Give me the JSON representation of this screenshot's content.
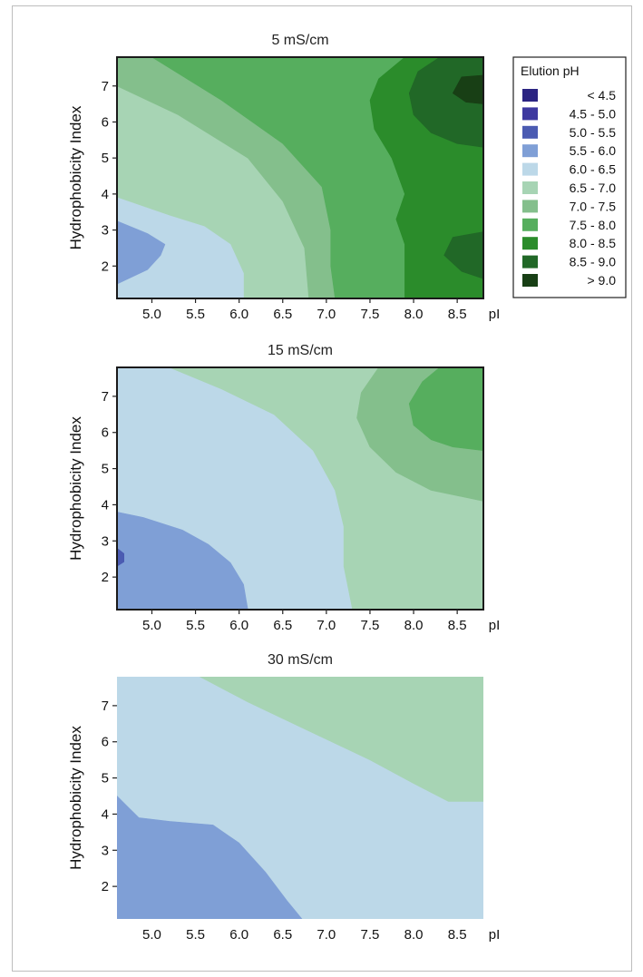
{
  "chart_data": [
    {
      "type": "contour",
      "title": "5 mS/cm",
      "xlabel": "pI",
      "ylabel": "Hydrophobicity Index",
      "xlim": [
        4.6,
        8.8
      ],
      "ylim": [
        1.1,
        7.8
      ],
      "xticks": [
        "5.0",
        "5.5",
        "6.0",
        "6.5",
        "7.0",
        "7.5",
        "8.0",
        "8.5"
      ],
      "yticks": [
        "2",
        "3",
        "4",
        "5",
        "6",
        "7"
      ],
      "regions": [
        {
          "level": "6.0 - 6.5",
          "points": [
            [
              4.6,
              1.1
            ],
            [
              6.05,
              1.1
            ],
            [
              6.05,
              1.8
            ],
            [
              5.9,
              2.6
            ],
            [
              5.6,
              3.1
            ],
            [
              5.2,
              3.4
            ],
            [
              4.6,
              3.9
            ]
          ]
        },
        {
          "level": "5.5 - 6.0",
          "points": [
            [
              4.6,
              1.5
            ],
            [
              4.95,
              1.9
            ],
            [
              5.1,
              2.3
            ],
            [
              5.15,
              2.6
            ],
            [
              4.95,
              2.9
            ],
            [
              4.6,
              3.25
            ]
          ]
        },
        {
          "level": "7.0 - 7.5",
          "points": [
            [
              4.6,
              7.0
            ],
            [
              5.3,
              6.2
            ],
            [
              6.1,
              5.0
            ],
            [
              6.5,
              3.8
            ],
            [
              6.75,
              2.5
            ],
            [
              6.8,
              1.1
            ],
            [
              7.5,
              1.1
            ],
            [
              7.5,
              7.8
            ],
            [
              4.6,
              7.8
            ]
          ]
        },
        {
          "level": "7.5 - 8.0",
          "points": [
            [
              5.0,
              7.8
            ],
            [
              5.8,
              6.6
            ],
            [
              6.5,
              5.4
            ],
            [
              6.95,
              4.2
            ],
            [
              7.05,
              3.0
            ],
            [
              7.05,
              2.0
            ],
            [
              7.1,
              1.1
            ],
            [
              8.8,
              1.1
            ],
            [
              8.8,
              7.8
            ]
          ]
        },
        {
          "level": "8.0 - 8.5",
          "points": [
            [
              7.9,
              7.8
            ],
            [
              7.6,
              7.2
            ],
            [
              7.5,
              6.6
            ],
            [
              7.55,
              5.8
            ],
            [
              7.75,
              5.0
            ],
            [
              7.9,
              4.0
            ],
            [
              7.8,
              3.3
            ],
            [
              7.9,
              2.6
            ],
            [
              7.9,
              1.1
            ],
            [
              8.8,
              1.1
            ],
            [
              8.8,
              7.8
            ]
          ]
        },
        {
          "level": "8.5 - 9.0",
          "points": [
            [
              8.8,
              5.3
            ],
            [
              8.5,
              5.4
            ],
            [
              8.2,
              5.7
            ],
            [
              8.0,
              6.2
            ],
            [
              7.95,
              6.8
            ],
            [
              8.05,
              7.4
            ],
            [
              8.3,
              7.8
            ],
            [
              8.8,
              7.8
            ]
          ]
        },
        {
          "level": "8.5 - 9.0",
          "points": [
            [
              8.8,
              1.65
            ],
            [
              8.55,
              1.85
            ],
            [
              8.35,
              2.3
            ],
            [
              8.45,
              2.8
            ],
            [
              8.8,
              2.95
            ]
          ]
        },
        {
          "level": "> 9.0",
          "points": [
            [
              8.8,
              6.5
            ],
            [
              8.6,
              6.55
            ],
            [
              8.45,
              6.8
            ],
            [
              8.55,
              7.25
            ],
            [
              8.8,
              7.3
            ]
          ]
        }
      ]
    },
    {
      "type": "contour",
      "title": "15 mS/cm",
      "xlabel": "pI",
      "ylabel": "Hydrophobicity Index",
      "xlim": [
        4.6,
        8.8
      ],
      "ylim": [
        1.1,
        7.8
      ],
      "xticks": [
        "5.0",
        "5.5",
        "6.0",
        "6.5",
        "7.0",
        "7.5",
        "8.0",
        "8.5"
      ],
      "yticks": [
        "2",
        "3",
        "4",
        "5",
        "6",
        "7"
      ],
      "regions": [
        {
          "level": "6.5 - 7.0",
          "points": [
            [
              5.2,
              7.8
            ],
            [
              5.8,
              7.2
            ],
            [
              6.4,
              6.5
            ],
            [
              6.85,
              5.5
            ],
            [
              7.1,
              4.4
            ],
            [
              7.2,
              3.4
            ],
            [
              7.2,
              2.3
            ],
            [
              7.3,
              1.1
            ],
            [
              8.8,
              1.1
            ],
            [
              8.8,
              7.8
            ]
          ]
        },
        {
          "level": "7.0 - 7.5",
          "points": [
            [
              7.6,
              7.8
            ],
            [
              7.4,
              7.1
            ],
            [
              7.35,
              6.4
            ],
            [
              7.5,
              5.6
            ],
            [
              7.8,
              4.9
            ],
            [
              8.2,
              4.4
            ],
            [
              8.8,
              4.1
            ],
            [
              8.8,
              7.8
            ]
          ]
        },
        {
          "level": "7.5 - 8.0",
          "points": [
            [
              8.8,
              5.5
            ],
            [
              8.45,
              5.6
            ],
            [
              8.2,
              5.8
            ],
            [
              8.0,
              6.2
            ],
            [
              7.95,
              6.8
            ],
            [
              8.1,
              7.4
            ],
            [
              8.3,
              7.8
            ],
            [
              8.8,
              7.8
            ]
          ]
        },
        {
          "level": "5.5 - 6.0",
          "points": [
            [
              4.6,
              1.1
            ],
            [
              6.1,
              1.1
            ],
            [
              6.05,
              1.8
            ],
            [
              5.9,
              2.4
            ],
            [
              5.65,
              2.9
            ],
            [
              5.35,
              3.3
            ],
            [
              4.9,
              3.65
            ],
            [
              4.6,
              3.8
            ]
          ]
        },
        {
          "level": "5.0 - 5.5",
          "points": [
            [
              4.6,
              2.3
            ],
            [
              4.68,
              2.42
            ],
            [
              4.68,
              2.65
            ],
            [
              4.6,
              2.8
            ]
          ]
        }
      ]
    },
    {
      "type": "contour",
      "title": "30 mS/cm",
      "xlabel": "pI",
      "ylabel": "Hydrophobicity Index",
      "xlim": [
        4.6,
        8.8
      ],
      "ylim": [
        1.1,
        7.8
      ],
      "xticks": [
        "5.0",
        "5.5",
        "6.0",
        "6.5",
        "7.0",
        "7.5",
        "8.0",
        "8.5"
      ],
      "yticks": [
        "2",
        "3",
        "4",
        "5",
        "6",
        "7"
      ],
      "regions": [
        {
          "level": "6.5 - 7.0",
          "points": [
            [
              5.55,
              7.8
            ],
            [
              6.1,
              7.1
            ],
            [
              6.8,
              6.3
            ],
            [
              7.5,
              5.5
            ],
            [
              8.0,
              4.85
            ],
            [
              8.4,
              4.35
            ],
            [
              8.8,
              4.35
            ],
            [
              8.8,
              7.8
            ]
          ]
        },
        {
          "level": "5.5 - 6.0",
          "points": [
            [
              4.6,
              1.1
            ],
            [
              6.72,
              1.1
            ],
            [
              6.55,
              1.6
            ],
            [
              6.3,
              2.4
            ],
            [
              6.0,
              3.2
            ],
            [
              5.7,
              3.7
            ],
            [
              5.2,
              3.8
            ],
            [
              4.85,
              3.9
            ],
            [
              4.6,
              4.5
            ]
          ]
        }
      ]
    }
  ],
  "legend": {
    "title": "Elution pH",
    "placement": "right of top panel",
    "items": [
      {
        "label": "< 4.5",
        "color": "#2b2482"
      },
      {
        "label": "4.5 - 5.0",
        "color": "#3e39a0"
      },
      {
        "label": "5.0 - 5.5",
        "color": "#4b5bb2"
      },
      {
        "label": "5.5 - 6.0",
        "color": "#7f9fd6"
      },
      {
        "label": "6.0 - 6.5",
        "color": "#bcd8e8"
      },
      {
        "label": "6.5 - 7.0",
        "color": "#a7d4b4"
      },
      {
        "label": "7.0 - 7.5",
        "color": "#84bf8c"
      },
      {
        "label": "7.5 - 8.0",
        "color": "#56ae5e"
      },
      {
        "label": "8.0 - 8.5",
        "color": "#2b8c2b"
      },
      {
        "label": "8.5 - 9.0",
        "color": "#216827"
      },
      {
        "label": "> 9.0",
        "color": "#183f15"
      }
    ]
  },
  "panel_backgrounds": [
    "6.5 - 7.0",
    "6.0 - 6.5",
    "6.0 - 6.5"
  ]
}
